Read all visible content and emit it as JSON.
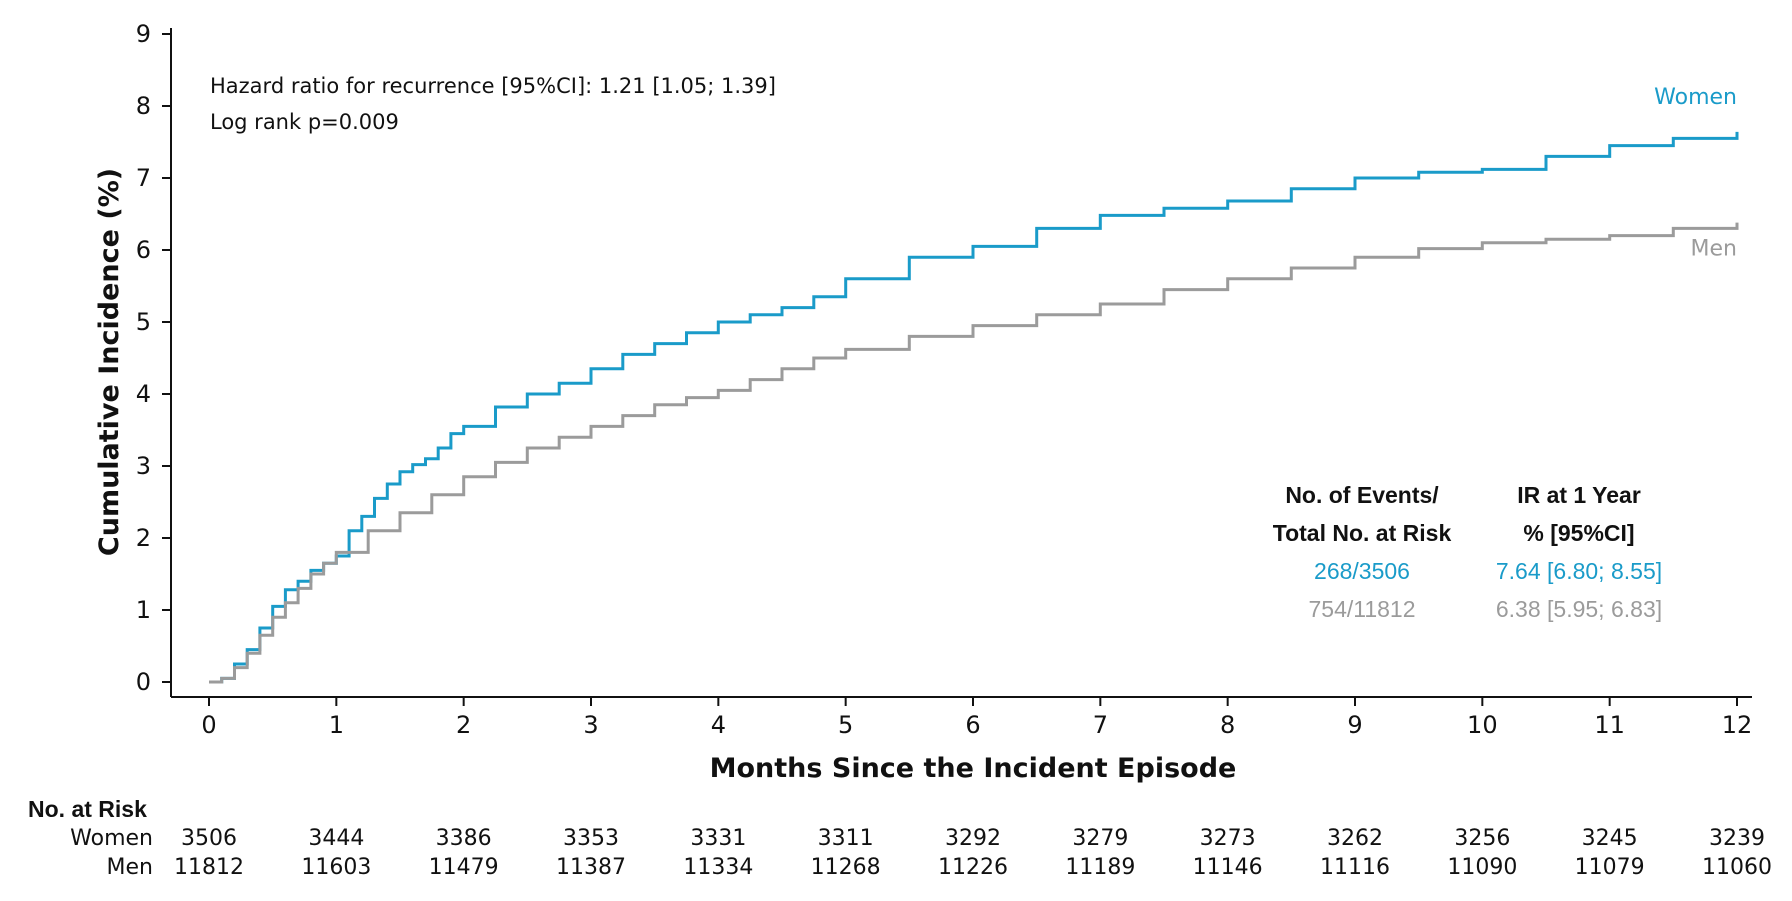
{
  "chart_data": {
    "type": "line",
    "step": true,
    "xlabel": "Months Since the Incident Episode",
    "ylabel": "Cumulative Incidence (%)",
    "xlim": [
      0,
      12
    ],
    "ylim": [
      0,
      9
    ],
    "x_ticks": [
      0,
      1,
      2,
      3,
      4,
      5,
      6,
      7,
      8,
      9,
      10,
      11,
      12
    ],
    "y_ticks": [
      0,
      1,
      2,
      3,
      4,
      5,
      6,
      7,
      8,
      9
    ],
    "grid": false,
    "annotations": [
      "Hazard ratio for recurrence [95%CI]: 1.21 [1.05; 1.39]",
      "Log rank p=0.009"
    ],
    "series": [
      {
        "name": "Women",
        "color": "#1a9bc9",
        "x": [
          0,
          0.1,
          0.2,
          0.3,
          0.4,
          0.5,
          0.6,
          0.7,
          0.8,
          0.9,
          1.0,
          1.1,
          1.2,
          1.3,
          1.4,
          1.5,
          1.6,
          1.7,
          1.8,
          1.9,
          2.0,
          2.25,
          2.5,
          2.75,
          3.0,
          3.25,
          3.5,
          3.75,
          4.0,
          4.25,
          4.5,
          4.75,
          5.0,
          5.5,
          6.0,
          6.5,
          7.0,
          7.5,
          8.0,
          8.5,
          9.0,
          9.5,
          10.0,
          10.5,
          11.0,
          11.5,
          12.0
        ],
        "y": [
          0,
          0.05,
          0.25,
          0.45,
          0.75,
          1.05,
          1.28,
          1.4,
          1.55,
          1.65,
          1.75,
          2.1,
          2.3,
          2.55,
          2.75,
          2.92,
          3.02,
          3.1,
          3.25,
          3.45,
          3.55,
          3.82,
          4.0,
          4.15,
          4.35,
          4.55,
          4.7,
          4.85,
          5.0,
          5.1,
          5.2,
          5.35,
          5.6,
          5.9,
          6.05,
          6.3,
          6.48,
          6.58,
          6.68,
          6.85,
          7.0,
          7.08,
          7.12,
          7.3,
          7.45,
          7.55,
          7.64
        ]
      },
      {
        "name": "Men",
        "color": "#9b9b9b",
        "x": [
          0,
          0.1,
          0.2,
          0.3,
          0.4,
          0.5,
          0.6,
          0.7,
          0.8,
          0.9,
          1.0,
          1.25,
          1.5,
          1.75,
          2.0,
          2.25,
          2.5,
          2.75,
          3.0,
          3.25,
          3.5,
          3.75,
          4.0,
          4.25,
          4.5,
          4.75,
          5.0,
          5.5,
          6.0,
          6.5,
          7.0,
          7.5,
          8.0,
          8.5,
          9.0,
          9.5,
          10.0,
          10.5,
          11.0,
          11.5,
          12.0
        ],
        "y": [
          0,
          0.05,
          0.2,
          0.4,
          0.65,
          0.9,
          1.1,
          1.3,
          1.5,
          1.65,
          1.8,
          2.1,
          2.35,
          2.6,
          2.85,
          3.05,
          3.25,
          3.4,
          3.55,
          3.7,
          3.85,
          3.95,
          4.05,
          4.2,
          4.35,
          4.5,
          4.62,
          4.8,
          4.95,
          5.1,
          5.25,
          5.45,
          5.6,
          5.75,
          5.9,
          6.02,
          6.1,
          6.15,
          6.2,
          6.3,
          6.38
        ]
      }
    ],
    "stats_table": {
      "headers": [
        [
          "No. of Events/",
          "Total No. at Risk"
        ],
        [
          "IR at 1 Year",
          "% [95%CI]"
        ]
      ],
      "rows": [
        {
          "group": "Women",
          "events": "268/3506",
          "ir": "7.64 [6.80; 8.55]",
          "color": "#1a9bc9"
        },
        {
          "group": "Men",
          "events": "754/11812",
          "ir": "6.38 [5.95; 6.83]",
          "color": "#9b9b9b"
        }
      ]
    },
    "risk_table": {
      "title": "No. at Risk",
      "rows": [
        {
          "label": "Women",
          "values": [
            "3506",
            "3444",
            "3386",
            "3353",
            "3331",
            "3311",
            "3292",
            "3279",
            "3273",
            "3262",
            "3256",
            "3245",
            "3239"
          ]
        },
        {
          "label": "Men",
          "values": [
            "11812",
            "11603",
            "11479",
            "11387",
            "11334",
            "11268",
            "11226",
            "11189",
            "11146",
            "11116",
            "11090",
            "11079",
            "11060"
          ]
        }
      ]
    }
  }
}
